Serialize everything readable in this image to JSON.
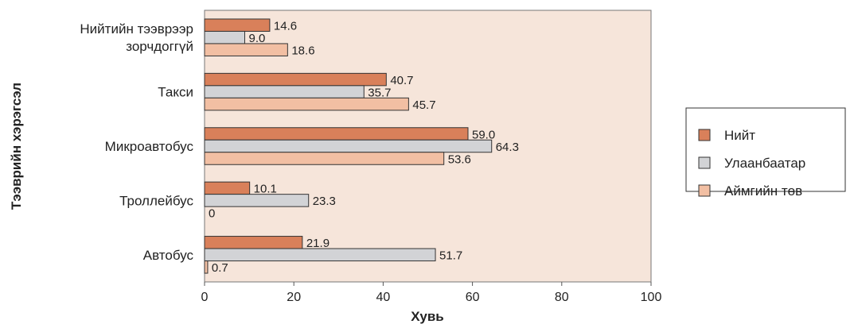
{
  "chart_data": {
    "type": "bar",
    "orientation": "horizontal",
    "categories": [
      "Нийтийн тээврээр зорчдоггүй",
      "Такси",
      "Микроавтобус",
      "Троллейбус",
      "Автобус"
    ],
    "category_lines": [
      [
        "Нийтийн тээврээр",
        "зорчдоггүй"
      ],
      [
        "Такси"
      ],
      [
        "Микроавтобус"
      ],
      [
        "Троллейбус"
      ],
      [
        "Автобус"
      ]
    ],
    "series": [
      {
        "name": "Нийт",
        "values": [
          14.6,
          40.7,
          59.0,
          10.1,
          21.9
        ],
        "labels": [
          "14.6",
          "40.7",
          "59.0",
          "10.1",
          "21.9"
        ],
        "color": "#d9805a"
      },
      {
        "name": "Улаанбаатар",
        "values": [
          9.0,
          35.7,
          64.3,
          23.3,
          51.7
        ],
        "labels": [
          "9.0",
          "35.7",
          "64.3",
          "23.3",
          "51.7"
        ],
        "color": "#d2d3d6"
      },
      {
        "name": "Аймгийн төв",
        "values": [
          18.6,
          45.7,
          53.6,
          0,
          0.7
        ],
        "labels": [
          "18.6",
          "45.7",
          "53.6",
          "0",
          "0.7"
        ],
        "color": "#f2bfa3"
      }
    ],
    "xlabel": "Хувь",
    "ylabel": "Тээврийн хэрэгсэл",
    "xlim": [
      0,
      100
    ],
    "xticks": [
      0,
      20,
      40,
      60,
      80,
      100
    ],
    "grid": false,
    "legend_position": "right",
    "plot_background": "#f6e5da"
  }
}
